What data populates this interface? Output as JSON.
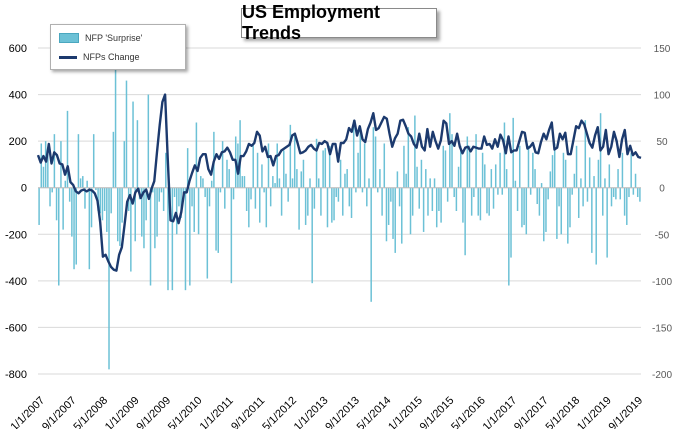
{
  "chart_data": {
    "type": "bar+line",
    "title": "US Employment Trends",
    "legend": {
      "placement": "top-left",
      "entries": [
        "NFP 'Surprise'",
        "NFPs Change"
      ]
    },
    "colors": {
      "bars": "#6cc1d6",
      "line": "#1c3a6e",
      "grid": "#d9d9d9",
      "axis_text": "#595959"
    },
    "grid": true,
    "left_axis": {
      "min": -800,
      "max": 600,
      "ticks": [
        -800,
        -600,
        -400,
        -200,
        0,
        200,
        400,
        600
      ]
    },
    "right_axis": {
      "min": -200,
      "max": 150,
      "ticks": [
        -200,
        -150,
        -100,
        -50,
        0,
        50,
        100,
        150
      ]
    },
    "x_tick_labels": [
      "1/1/2007",
      "9/1/2007",
      "5/1/2008",
      "1/1/2009",
      "9/1/2009",
      "5/1/2010",
      "1/1/2011",
      "9/1/2011",
      "5/1/2012",
      "1/1/2013",
      "9/1/2013",
      "5/1/2014",
      "1/1/2015",
      "9/1/2015",
      "5/1/2016",
      "1/1/2017",
      "9/1/2017",
      "5/1/2018",
      "1/1/2019",
      "9/1/2019"
    ],
    "series": [
      {
        "name": "NFPs Change",
        "axis": "left",
        "kind": "bar",
        "values": [
          -160,
          190,
          90,
          200,
          170,
          -80,
          -20,
          230,
          -140,
          -420,
          200,
          -180,
          30,
          330,
          -60,
          -210,
          -350,
          -330,
          230,
          40,
          50,
          -90,
          30,
          -350,
          -170,
          230,
          -10,
          -100,
          -110,
          -140,
          -100,
          -190,
          -780,
          -110,
          240,
          540,
          -230,
          -250,
          -150,
          200,
          460,
          -100,
          -360,
          370,
          -230,
          290,
          -50,
          -210,
          -260,
          -140,
          400,
          -420,
          -20,
          -260,
          -210,
          -60,
          -20,
          -100,
          150,
          -440,
          -90,
          -440,
          -40,
          -200,
          -80,
          -130,
          -60,
          -440,
          170,
          -420,
          -80,
          -190,
          280,
          -200,
          50,
          40,
          -40,
          -390,
          -80,
          30,
          240,
          -270,
          -280,
          -20,
          200,
          -90,
          120,
          80,
          -410,
          -50,
          220,
          190,
          290,
          50,
          50,
          -100,
          -170,
          -50,
          190,
          -90,
          150,
          -150,
          100,
          -20,
          -170,
          190,
          -80,
          50,
          20,
          190,
          40,
          -120,
          160,
          60,
          -60,
          270,
          40,
          230,
          80,
          -180,
          70,
          120,
          -160,
          -120,
          40,
          -410,
          -90,
          210,
          40,
          -120,
          160,
          170,
          -170,
          180,
          -150,
          -140,
          -40,
          -60,
          120,
          -120,
          60,
          80,
          -80,
          -130,
          290,
          -20,
          150,
          260,
          -20,
          190,
          -80,
          40,
          -490,
          260,
          220,
          -20,
          80,
          -120,
          190,
          -230,
          -160,
          -60,
          -220,
          -280,
          70,
          -80,
          -240,
          180,
          60,
          260,
          -200,
          -120,
          310,
          90,
          -90,
          120,
          -190,
          80,
          -120,
          40,
          -100,
          40,
          -170,
          -100,
          -150,
          180,
          160,
          -60,
          320,
          230,
          -40,
          -100,
          90,
          180,
          -150,
          -290,
          220,
          180,
          -120,
          -40,
          230,
          -120,
          -140,
          150,
          100,
          -110,
          -120,
          80,
          -90,
          100,
          -30,
          150,
          -30,
          280,
          80,
          -420,
          -300,
          300,
          30,
          -100,
          180,
          -170,
          -160,
          -200,
          180,
          -30,
          150,
          80,
          -70,
          -120,
          20,
          -230,
          -190,
          -50,
          70,
          140,
          190,
          -220,
          -80,
          -200,
          150,
          120,
          -240,
          -170,
          -30,
          60,
          180,
          -130,
          40,
          -80,
          290,
          -60,
          130,
          -280,
          50,
          -330,
          120,
          320,
          -120,
          40,
          -300,
          100,
          -80,
          -40,
          -50,
          80,
          -50,
          150,
          -120,
          -160,
          -40,
          150,
          -30,
          60,
          -40,
          -60
        ],
        "note": "bar heights read approx from left axis"
      },
      {
        "name": "NFP 'Surprise'",
        "axis": "right",
        "kind": "line",
        "values": [
          35,
          27,
          34,
          28,
          47,
          26,
          38,
          35,
          26,
          25,
          14,
          23,
          6,
          3,
          -4,
          -6,
          -3,
          -2,
          -4,
          -2,
          -3,
          -6,
          -14,
          -37,
          -74,
          -72,
          -79,
          -85,
          -88,
          -89,
          -72,
          -64,
          -40,
          -15,
          -8,
          -17,
          -5,
          -1,
          -11,
          -5,
          -2,
          -12,
          -1,
          7,
          38,
          67,
          92,
          100,
          30,
          -35,
          -36,
          -27,
          -38,
          -26,
          -5,
          -5,
          7,
          16,
          24,
          18,
          32,
          36,
          36,
          20,
          14,
          28,
          36,
          31,
          38,
          39,
          43,
          38,
          30,
          30,
          15,
          34,
          34,
          39,
          47,
          45,
          48,
          60,
          56,
          39,
          44,
          33,
          34,
          24,
          34,
          35,
          40,
          42,
          44,
          46,
          56,
          58,
          48,
          37,
          38,
          40,
          44,
          46,
          42,
          40,
          48,
          47,
          50,
          48,
          36,
          47,
          47,
          28,
          48,
          48,
          52,
          64,
          60,
          72,
          56,
          66,
          52,
          49,
          63,
          70,
          80,
          62,
          64,
          70,
          76,
          74,
          58,
          44,
          53,
          58,
          72,
          73,
          66,
          58,
          55,
          47,
          43,
          58,
          44,
          40,
          63,
          44,
          60,
          50,
          42,
          51,
          72,
          69,
          47,
          50,
          45,
          58,
          44,
          37,
          43,
          44,
          39,
          44,
          43,
          42,
          42,
          55,
          46,
          47,
          42,
          52,
          44,
          57,
          51,
          37,
          55,
          38,
          40,
          40,
          50,
          60,
          59,
          42,
          44,
          48,
          38,
          37,
          49,
          58,
          52,
          62,
          70,
          41,
          43,
          58,
          52,
          59,
          36,
          36,
          51,
          66,
          64,
          72,
          68,
          58,
          48,
          43,
          56,
          65,
          40,
          44,
          62,
          36,
          44,
          60,
          50,
          33,
          52,
          62,
          36,
          45,
          35,
          38,
          33,
          32
        ],
        "note": "line series read approx from right axis"
      }
    ],
    "x_range": {
      "start": "1/1/2007",
      "end": "11/1/2019",
      "months": 155
    }
  }
}
